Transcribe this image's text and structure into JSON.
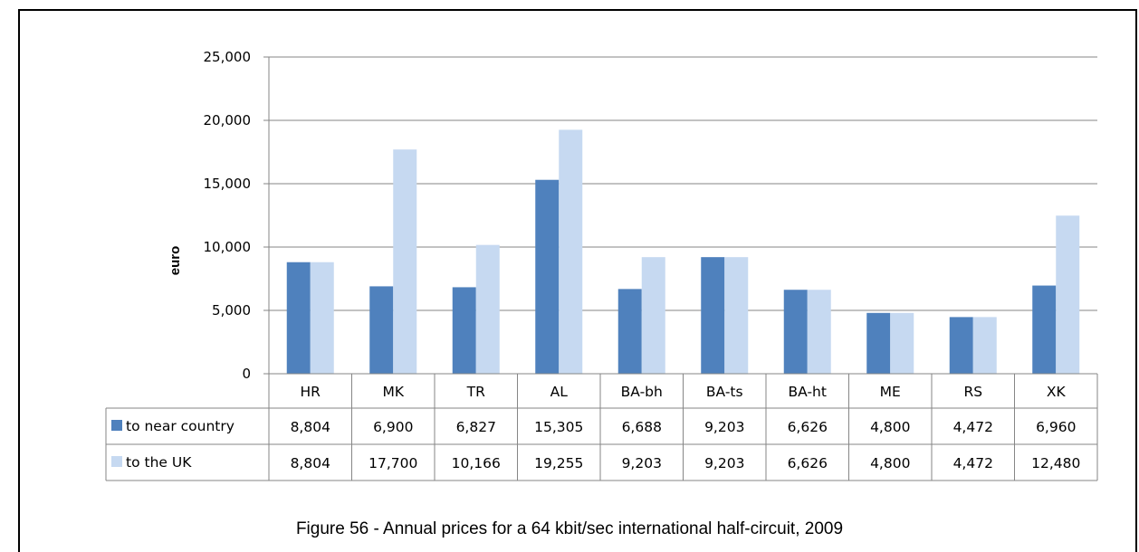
{
  "chart_data": {
    "type": "bar",
    "ylabel": "euro",
    "ylim": [
      0,
      25000
    ],
    "yticks": [
      "0",
      "5,000",
      "10,000",
      "15,000",
      "20,000",
      "25,000"
    ],
    "categories": [
      "HR",
      "MK",
      "TR",
      "AL",
      "BA-bh",
      "BA-ts",
      "BA-ht",
      "ME",
      "RS",
      "XK"
    ],
    "series": [
      {
        "name": "to near country",
        "color": "#4f81bd",
        "values": [
          8804,
          6900,
          6827,
          15305,
          6688,
          9203,
          6626,
          4800,
          4472,
          6960
        ],
        "labels": [
          "8,804",
          "6,900",
          "6,827",
          "15,305",
          "6,688",
          "9,203",
          "6,626",
          "4,800",
          "4,472",
          "6,960"
        ]
      },
      {
        "name": "to the UK",
        "color": "#c6d9f1",
        "values": [
          8804,
          17700,
          10166,
          19255,
          9203,
          9203,
          6626,
          4800,
          4472,
          12480
        ],
        "labels": [
          "8,804",
          "17,700",
          "10,166",
          "19,255",
          "9,203",
          "9,203",
          "6,626",
          "4,800",
          "4,472",
          "12,480"
        ]
      }
    ],
    "grid": true,
    "legend": "data-table"
  },
  "caption": "Figure 56 - Annual prices for a 64 kbit/sec international half-circuit, 2009"
}
